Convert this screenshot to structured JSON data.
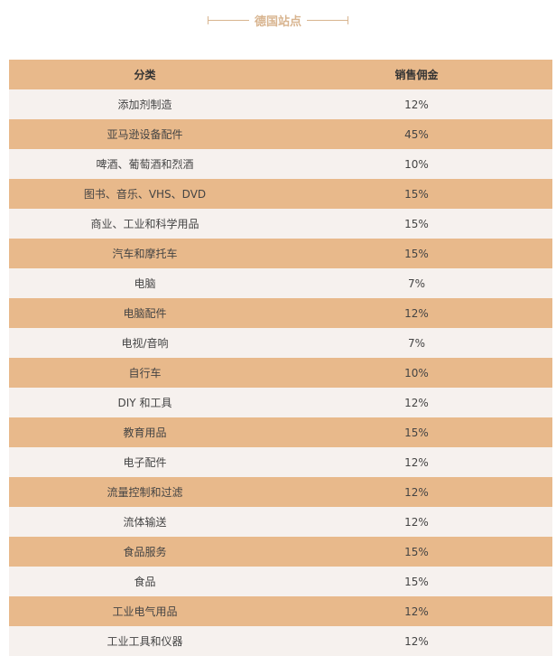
{
  "title": "德国站点",
  "header": {
    "category": "分类",
    "commission": "销售佣金"
  },
  "rows": [
    {
      "category": "添加剂制造",
      "commission": "12%"
    },
    {
      "category": "亚马逊设备配件",
      "commission": "45%"
    },
    {
      "category": "啤酒、葡萄酒和烈酒",
      "commission": "10%"
    },
    {
      "category": "图书、音乐、VHS、DVD",
      "commission": "15%"
    },
    {
      "category": "商业、工业和科学用品",
      "commission": "15%"
    },
    {
      "category": "汽车和摩托车",
      "commission": "15%"
    },
    {
      "category": "电脑",
      "commission": "7%"
    },
    {
      "category": "电脑配件",
      "commission": "12%"
    },
    {
      "category": "电视/音响",
      "commission": "7%"
    },
    {
      "category": "自行车",
      "commission": "10%"
    },
    {
      "category": "DIY 和工具",
      "commission": "12%"
    },
    {
      "category": "教育用品",
      "commission": "15%"
    },
    {
      "category": "电子配件",
      "commission": "12%"
    },
    {
      "category": "流量控制和过滤",
      "commission": "12%"
    },
    {
      "category": "流体输送",
      "commission": "12%"
    },
    {
      "category": "食品服务",
      "commission": "15%"
    },
    {
      "category": "食品",
      "commission": "15%"
    },
    {
      "category": "工业电气用品",
      "commission": "12%"
    },
    {
      "category": "工业工具和仪器",
      "commission": "12%"
    }
  ],
  "colors": {
    "header": "#e8b98b",
    "stripe": "#f6f1ee",
    "title": "#d8b48f"
  }
}
